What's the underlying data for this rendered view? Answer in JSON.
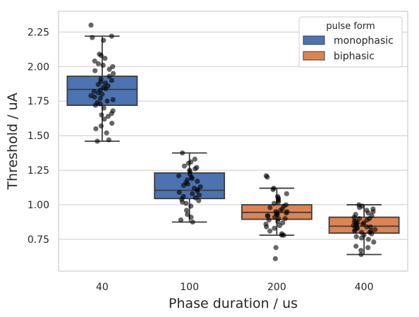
{
  "chart_data": {
    "type": "box",
    "xlabel": "Phase duration / us",
    "ylabel": "Threshold / uA",
    "categories": [
      "40",
      "100",
      "200",
      "400"
    ],
    "ylim": [
      0.52,
      2.4
    ],
    "yticks": [
      0.75,
      1.0,
      1.25,
      1.5,
      1.75,
      2.0,
      2.25
    ],
    "ytick_labels": [
      "0.75",
      "1.00",
      "1.25",
      "1.50",
      "1.75",
      "2.00",
      "2.25"
    ],
    "grid": "horizontal",
    "legend": {
      "title": "pulse form",
      "placement": "top-right",
      "entries": [
        {
          "label": "monophasic",
          "color": "#4c72b0"
        },
        {
          "label": "biphasic",
          "color": "#dd8452"
        }
      ]
    },
    "boxes": [
      {
        "category": "40",
        "series": "monophasic",
        "color": "#4c72b0",
        "whisker_low": 1.46,
        "q1": 1.72,
        "median": 1.835,
        "q3": 1.93,
        "whisker_high": 2.22
      },
      {
        "category": "100",
        "series": "monophasic",
        "color": "#4c72b0",
        "whisker_low": 0.875,
        "q1": 1.045,
        "median": 1.105,
        "q3": 1.23,
        "whisker_high": 1.375
      },
      {
        "category": "200",
        "series": "biphasic",
        "color": "#dd8452",
        "whisker_low": 0.78,
        "q1": 0.895,
        "median": 0.945,
        "q3": 1.0,
        "whisker_high": 1.12
      },
      {
        "category": "400",
        "series": "biphasic",
        "color": "#dd8452",
        "whisker_low": 0.64,
        "q1": 0.795,
        "median": 0.845,
        "q3": 0.91,
        "whisker_high": 1.0
      }
    ],
    "points": [
      {
        "category": "40",
        "values": [
          2.3,
          2.22,
          2.21,
          2.19,
          2.09,
          2.08,
          2.06,
          2.04,
          2.02,
          2.01,
          2.0,
          1.98,
          1.97,
          1.95,
          1.93,
          1.91,
          1.9,
          1.89,
          1.88,
          1.87,
          1.86,
          1.85,
          1.84,
          1.83,
          1.82,
          1.81,
          1.8,
          1.79,
          1.78,
          1.77,
          1.76,
          1.75,
          1.74,
          1.73,
          1.72,
          1.7,
          1.68,
          1.66,
          1.65,
          1.64,
          1.62,
          1.59,
          1.57,
          1.55,
          1.52,
          1.47,
          1.46
        ]
      },
      {
        "category": "100",
        "values": [
          1.375,
          1.33,
          1.31,
          1.3,
          1.28,
          1.27,
          1.26,
          1.25,
          1.24,
          1.22,
          1.21,
          1.2,
          1.19,
          1.18,
          1.17,
          1.16,
          1.15,
          1.14,
          1.13,
          1.12,
          1.11,
          1.1,
          1.09,
          1.08,
          1.07,
          1.06,
          1.05,
          1.04,
          1.03,
          1.02,
          1.01,
          0.99,
          0.96,
          0.93,
          0.91,
          0.89,
          0.875
        ]
      },
      {
        "category": "200",
        "values": [
          1.21,
          1.2,
          1.12,
          1.11,
          1.08,
          1.06,
          1.05,
          1.04,
          1.03,
          1.02,
          1.01,
          1.0,
          0.99,
          0.98,
          0.97,
          0.96,
          0.95,
          0.95,
          0.94,
          0.94,
          0.93,
          0.93,
          0.92,
          0.92,
          0.91,
          0.9,
          0.9,
          0.89,
          0.88,
          0.87,
          0.86,
          0.85,
          0.84,
          0.83,
          0.81,
          0.79,
          0.78,
          0.78,
          0.69,
          0.61
        ]
      },
      {
        "category": "400",
        "values": [
          1.0,
          0.99,
          0.98,
          0.97,
          0.96,
          0.95,
          0.94,
          0.93,
          0.92,
          0.91,
          0.9,
          0.9,
          0.89,
          0.88,
          0.88,
          0.87,
          0.87,
          0.86,
          0.86,
          0.85,
          0.85,
          0.84,
          0.84,
          0.83,
          0.83,
          0.82,
          0.82,
          0.81,
          0.81,
          0.8,
          0.8,
          0.79,
          0.78,
          0.77,
          0.76,
          0.75,
          0.73,
          0.7,
          0.69,
          0.67,
          0.64
        ]
      }
    ]
  }
}
